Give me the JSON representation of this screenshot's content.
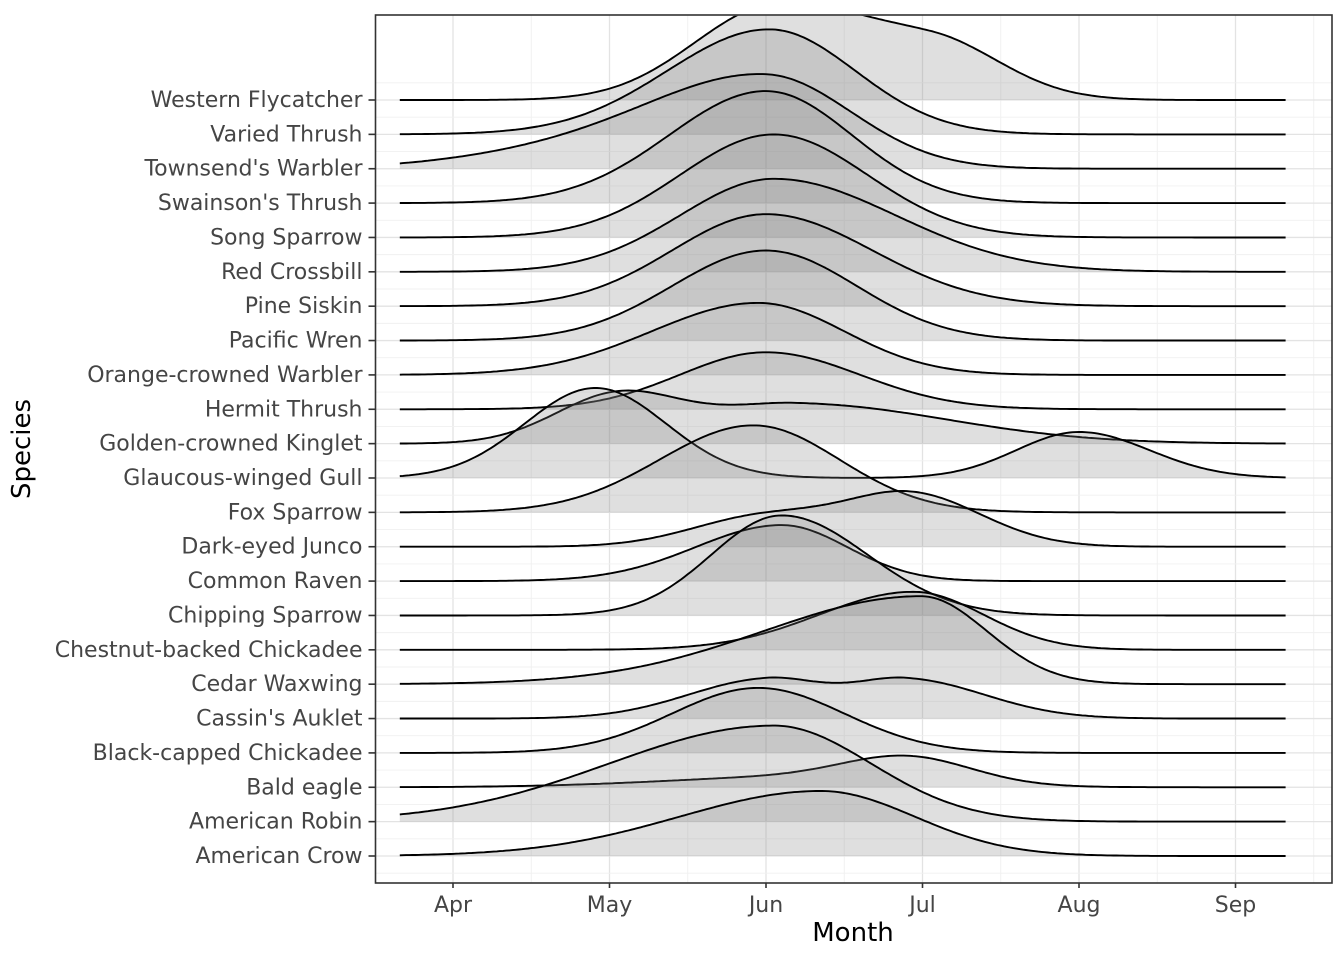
{
  "chart_data": {
    "type": "ridgeline",
    "title": "",
    "xlabel": "Month",
    "ylabel": "Species",
    "x_ticks": [
      "Apr",
      "May",
      "Jun",
      "Jul",
      "Aug",
      "Sep"
    ],
    "x_tick_months": [
      4,
      5,
      6,
      7,
      8,
      9
    ],
    "x_range_months": [
      3.66,
      9.33
    ],
    "grid": "on",
    "legend": "none",
    "style": {
      "line_color": "#000000",
      "fill_color": "#808080",
      "fill_opacity": 0.25,
      "grid_major_color": "#e3e3e3",
      "grid_minor_color": "#f0f0f0",
      "panel_border_color": "#333333",
      "axis_text_color": "#454545",
      "axis_title_color": "#000000",
      "background": "#ffffff"
    },
    "species_top_to_bottom": [
      {
        "name": "Western Flycatcher",
        "peak_months": [
          "Jun"
        ],
        "components": [
          [
            6.0,
            0.5,
            0.5,
            83
          ],
          [
            7.05,
            0.6,
            0.45,
            60
          ]
        ]
      },
      {
        "name": "Varied Thrush",
        "peak_months": [
          "Jun"
        ],
        "components": [
          [
            6.02,
            0.65,
            0.55,
            105
          ]
        ]
      },
      {
        "name": "Townsend's Warbler",
        "peak_months": [
          "Jun"
        ],
        "components": [
          [
            6.0,
            0.75,
            0.55,
            92
          ],
          [
            4.7,
            0.7,
            0.7,
            14
          ]
        ]
      },
      {
        "name": "Swainson's Thrush",
        "peak_months": [
          "Jun"
        ],
        "components": [
          [
            6.0,
            0.62,
            0.55,
            112
          ]
        ]
      },
      {
        "name": "Song Sparrow",
        "peak_months": [
          "Jun"
        ],
        "components": [
          [
            6.05,
            0.6,
            0.6,
            103
          ]
        ]
      },
      {
        "name": "Red Crossbill",
        "peak_months": [
          "Jun"
        ],
        "components": [
          [
            6.05,
            0.6,
            0.78,
            93
          ]
        ]
      },
      {
        "name": "Pine Siskin",
        "peak_months": [
          "Jun"
        ],
        "components": [
          [
            6.0,
            0.6,
            0.68,
            92
          ]
        ]
      },
      {
        "name": "Pacific Wren",
        "peak_months": [
          "Jun"
        ],
        "components": [
          [
            6.0,
            0.6,
            0.58,
            90
          ]
        ]
      },
      {
        "name": "Orange-crowned Warbler",
        "peak_months": [
          "Jun"
        ],
        "components": [
          [
            5.95,
            0.68,
            0.55,
            72
          ]
        ]
      },
      {
        "name": "Hermit Thrush",
        "peak_months": [
          "Jun"
        ],
        "components": [
          [
            6.0,
            0.55,
            0.6,
            57
          ]
        ]
      },
      {
        "name": "Golden-crowned Kinglet",
        "peak_months": [
          "May",
          "Jun"
        ],
        "components": [
          [
            5.05,
            0.4,
            0.4,
            48
          ],
          [
            6.2,
            0.55,
            0.95,
            40
          ]
        ]
      },
      {
        "name": "Glaucous-winged Gull",
        "peak_months": [
          "May",
          "Aug"
        ],
        "components": [
          [
            4.91,
            0.45,
            0.45,
            90
          ],
          [
            8.0,
            0.4,
            0.45,
            46
          ]
        ]
      },
      {
        "name": "Fox Sparrow",
        "peak_months": [
          "Jun"
        ],
        "components": [
          [
            5.92,
            0.6,
            0.55,
            87
          ]
        ]
      },
      {
        "name": "Dark-eyed Junco",
        "peak_months": [
          "Jun",
          "Jul"
        ],
        "components": [
          [
            5.98,
            0.45,
            0.45,
            30
          ],
          [
            6.93,
            0.42,
            0.45,
            52
          ]
        ]
      },
      {
        "name": "Common Raven",
        "peak_months": [
          "Jun"
        ],
        "components": [
          [
            6.1,
            0.55,
            0.42,
            56
          ]
        ]
      },
      {
        "name": "Chipping Sparrow",
        "peak_months": [
          "Jun"
        ],
        "components": [
          [
            6.1,
            0.45,
            0.55,
            100
          ]
        ]
      },
      {
        "name": "Chestnut-backed Chickadee",
        "peak_months": [
          "Jul"
        ],
        "components": [
          [
            6.94,
            0.6,
            0.45,
            58
          ]
        ]
      },
      {
        "name": "Cedar Waxwing",
        "peak_months": [
          "Jul"
        ],
        "components": [
          [
            6.99,
            1.0,
            0.42,
            88
          ]
        ]
      },
      {
        "name": "Cassin's Auklet",
        "peak_months": [
          "Jun",
          "Jul"
        ],
        "components": [
          [
            6.0,
            0.5,
            0.36,
            39
          ],
          [
            6.9,
            0.36,
            0.5,
            39
          ]
        ]
      },
      {
        "name": "Black-capped Chickadee",
        "peak_months": [
          "Jun"
        ],
        "components": [
          [
            5.95,
            0.55,
            0.55,
            65
          ]
        ]
      },
      {
        "name": "Bald eagle",
        "peak_months": [
          "Jul"
        ],
        "components": [
          [
            6.92,
            0.4,
            0.4,
            24
          ],
          [
            6.3,
            0.9,
            0.7,
            11
          ]
        ]
      },
      {
        "name": "American Robin",
        "peak_months": [
          "Jun"
        ],
        "components": [
          [
            6.05,
            1.05,
            0.62,
            96
          ]
        ]
      },
      {
        "name": "American Crow",
        "peak_months": [
          "Jun",
          "Jul"
        ],
        "components": [
          [
            6.35,
            0.9,
            0.6,
            65
          ]
        ]
      }
    ]
  }
}
